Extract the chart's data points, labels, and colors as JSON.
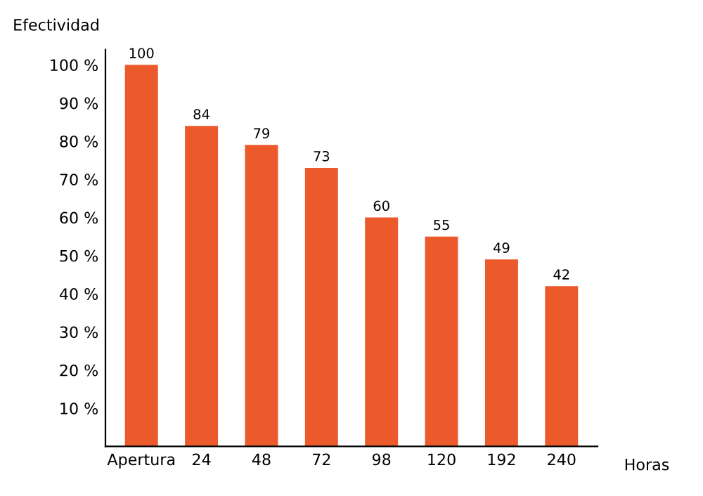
{
  "chart_data": {
    "type": "bar",
    "xlabel": "Horas",
    "ylabel": "Efectividad",
    "categories": [
      "Apertura",
      "24",
      "48",
      "72",
      "98",
      "120",
      "192",
      "240"
    ],
    "values": [
      100,
      84,
      79,
      73,
      60,
      55,
      49,
      42
    ],
    "color": "#ec5a2c",
    "data_labels": true,
    "grid": false,
    "ylim": [
      0,
      104
    ],
    "yticks": [
      {
        "value": 10,
        "label": "10 %"
      },
      {
        "value": 20,
        "label": "20 %"
      },
      {
        "value": 30,
        "label": "30 %"
      },
      {
        "value": 40,
        "label": "40 %"
      },
      {
        "value": 50,
        "label": "50 %"
      },
      {
        "value": 60,
        "label": "60 %"
      },
      {
        "value": 70,
        "label": "70 %"
      },
      {
        "value": 80,
        "label": "80 %"
      },
      {
        "value": 90,
        "label": "90 %"
      },
      {
        "value": 100,
        "label": "100 %"
      }
    ]
  }
}
